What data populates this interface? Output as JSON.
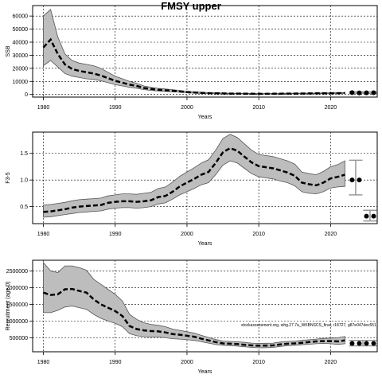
{
  "title": "FMSY upper",
  "footnote": "stockassessment.org, whg.27.7a_WKBNSCS_final, r18727, g87e047dec551",
  "chart_data": [
    {
      "type": "line",
      "ylabel": "SSB",
      "xlabel": "Years",
      "xlim": [
        1978.5,
        2026.5
      ],
      "ylim": [
        -2000,
        68000
      ],
      "xticks": [
        1980,
        1990,
        2000,
        2010,
        2020
      ],
      "yticks": [
        0,
        10000,
        20000,
        30000,
        40000,
        50000,
        60000
      ],
      "ytick_labels": [
        "0",
        "10000",
        "20000",
        "30000",
        "40000",
        "50000",
        "60000"
      ],
      "grid": true,
      "x": [
        1980,
        1981,
        1982,
        1983,
        1984,
        1985,
        1986,
        1987,
        1988,
        1989,
        1990,
        1991,
        1992,
        1993,
        1994,
        1995,
        1996,
        1997,
        1998,
        1999,
        2000,
        2001,
        2002,
        2003,
        2004,
        2005,
        2006,
        2007,
        2008,
        2009,
        2010,
        2011,
        2012,
        2013,
        2014,
        2015,
        2016,
        2017,
        2018,
        2019,
        2020,
        2021,
        2022
      ],
      "series": [
        {
          "role": "estimate",
          "values": [
            36000,
            42000,
            31000,
            23000,
            19500,
            18000,
            17000,
            16000,
            14500,
            12500,
            10500,
            9000,
            7500,
            6500,
            5000,
            4200,
            3600,
            3200,
            2800,
            2300,
            1800,
            1500,
            1200,
            1000,
            900,
            800,
            700,
            650,
            600,
            550,
            500,
            500,
            550,
            600,
            650,
            700,
            750,
            800,
            850,
            900,
            950,
            1000,
            1100
          ]
        },
        {
          "role": "upper",
          "values": [
            60000,
            65000,
            44000,
            31000,
            26000,
            24000,
            23000,
            22000,
            20000,
            17000,
            14000,
            12000,
            10000,
            8500,
            6500,
            5500,
            4700,
            4200,
            3700,
            3100,
            2500,
            2100,
            1700,
            1400,
            1250,
            1100,
            1000,
            900,
            850,
            800,
            750,
            750,
            800,
            850,
            900,
            950,
            1000,
            1050,
            1100,
            1150,
            1250,
            1350,
            1500
          ]
        },
        {
          "role": "lower",
          "values": [
            22000,
            26000,
            21000,
            16000,
            14000,
            13000,
            12000,
            11500,
            10500,
            9000,
            7500,
            6500,
            5500,
            4700,
            3700,
            3100,
            2700,
            2400,
            2100,
            1700,
            1300,
            1050,
            850,
            700,
            620,
            560,
            500,
            450,
            420,
            390,
            360,
            360,
            390,
            420,
            450,
            480,
            520,
            560,
            590,
            620,
            660,
            700,
            760
          ]
        }
      ],
      "forecast": {
        "x": [
          2023,
          2024,
          2025,
          2026
        ],
        "values": [
          1400,
          1200,
          1250,
          1350
        ],
        "upper": [
          2000,
          1800,
          1900,
          2000
        ],
        "lower": [
          900,
          750,
          800,
          850
        ]
      }
    },
    {
      "type": "line",
      "ylabel": "F3-5",
      "xlabel": "Years",
      "xlim": [
        1978.5,
        2026.5
      ],
      "ylim": [
        0.18,
        1.9
      ],
      "xticks": [
        1980,
        1990,
        2000,
        2010,
        2020
      ],
      "yticks": [
        0.5,
        1.0,
        1.5
      ],
      "ytick_labels": [
        "0.5",
        "1.0",
        "1.5"
      ],
      "grid": true,
      "x": [
        1980,
        1981,
        1982,
        1983,
        1984,
        1985,
        1986,
        1987,
        1988,
        1989,
        1990,
        1991,
        1992,
        1993,
        1994,
        1995,
        1996,
        1997,
        1998,
        1999,
        2000,
        2001,
        2002,
        2003,
        2004,
        2005,
        2006,
        2007,
        2008,
        2009,
        2010,
        2011,
        2012,
        2013,
        2014,
        2015,
        2016,
        2017,
        2018,
        2019,
        2020,
        2021,
        2022
      ],
      "series": [
        {
          "role": "estimate",
          "values": [
            0.4,
            0.41,
            0.43,
            0.45,
            0.48,
            0.5,
            0.51,
            0.52,
            0.53,
            0.57,
            0.59,
            0.6,
            0.6,
            0.59,
            0.6,
            0.62,
            0.68,
            0.7,
            0.78,
            0.88,
            0.95,
            1.02,
            1.1,
            1.15,
            1.32,
            1.52,
            1.6,
            1.55,
            1.44,
            1.33,
            1.26,
            1.24,
            1.22,
            1.18,
            1.14,
            1.08,
            0.95,
            0.92,
            0.9,
            0.95,
            1.03,
            1.06,
            1.1
          ]
        },
        {
          "role": "upper",
          "values": [
            0.53,
            0.54,
            0.56,
            0.58,
            0.61,
            0.63,
            0.64,
            0.65,
            0.66,
            0.7,
            0.72,
            0.74,
            0.74,
            0.73,
            0.75,
            0.77,
            0.84,
            0.87,
            0.96,
            1.07,
            1.15,
            1.23,
            1.32,
            1.38,
            1.56,
            1.78,
            1.86,
            1.8,
            1.68,
            1.56,
            1.48,
            1.46,
            1.44,
            1.4,
            1.36,
            1.3,
            1.15,
            1.12,
            1.1,
            1.16,
            1.25,
            1.29,
            1.36
          ]
        },
        {
          "role": "lower",
          "values": [
            0.3,
            0.31,
            0.33,
            0.35,
            0.37,
            0.39,
            0.4,
            0.41,
            0.42,
            0.45,
            0.47,
            0.48,
            0.48,
            0.47,
            0.48,
            0.5,
            0.55,
            0.57,
            0.64,
            0.72,
            0.78,
            0.84,
            0.91,
            0.95,
            1.1,
            1.28,
            1.36,
            1.32,
            1.22,
            1.12,
            1.06,
            1.04,
            1.02,
            0.98,
            0.95,
            0.89,
            0.78,
            0.75,
            0.74,
            0.78,
            0.85,
            0.87,
            0.88
          ]
        }
      ],
      "forecast": {
        "x": [
          2023,
          2024
        ],
        "values": [
          1.0,
          1.0
        ],
        "upper": [
          1.37,
          1.37
        ],
        "lower": [
          0.72,
          0.72
        ]
      },
      "forecast_low": {
        "x": [
          2025,
          2026
        ],
        "values": [
          0.32,
          0.32
        ],
        "upper": [
          0.43,
          0.43
        ],
        "lower": [
          0.23,
          0.23
        ]
      }
    },
    {
      "type": "line",
      "ylabel": "Recruitment (age 0)",
      "xlabel": "Years",
      "xlim": [
        1978.5,
        2026.5
      ],
      "ylim": [
        80000,
        2820000
      ],
      "xticks": [
        1980,
        1990,
        2000,
        2010,
        2020
      ],
      "yticks": [
        500000,
        1000000,
        1500000,
        2000000,
        2500000
      ],
      "ytick_labels": [
        "500000",
        "1000000",
        "1500000",
        "2000000",
        "2500000"
      ],
      "grid": true,
      "x": [
        1980,
        1981,
        1982,
        1983,
        1984,
        1985,
        1986,
        1987,
        1988,
        1989,
        1990,
        1991,
        1992,
        1993,
        1994,
        1995,
        1996,
        1997,
        1998,
        1999,
        2000,
        2001,
        2002,
        2003,
        2004,
        2005,
        2006,
        2007,
        2008,
        2009,
        2010,
        2011,
        2012,
        2013,
        2014,
        2015,
        2016,
        2017,
        2018,
        2019,
        2020,
        2021,
        2022
      ],
      "series": [
        {
          "role": "estimate",
          "values": [
            1850000,
            1780000,
            1800000,
            1950000,
            1960000,
            1900000,
            1850000,
            1650000,
            1500000,
            1400000,
            1300000,
            1150000,
            850000,
            760000,
            720000,
            700000,
            690000,
            660000,
            610000,
            590000,
            560000,
            530000,
            470000,
            420000,
            370000,
            330000,
            320000,
            310000,
            290000,
            270000,
            260000,
            265000,
            270000,
            300000,
            320000,
            330000,
            350000,
            370000,
            390000,
            400000,
            400000,
            390000,
            420000
          ]
        },
        {
          "role": "upper",
          "values": [
            2750000,
            2500000,
            2450000,
            2650000,
            2650000,
            2600000,
            2520000,
            2250000,
            2100000,
            1950000,
            1800000,
            1600000,
            1200000,
            1050000,
            950000,
            900000,
            870000,
            830000,
            760000,
            720000,
            680000,
            640000,
            570000,
            510000,
            450000,
            400000,
            390000,
            380000,
            360000,
            340000,
            330000,
            335000,
            340000,
            370000,
            390000,
            400000,
            420000,
            440000,
            460000,
            480000,
            490000,
            500000,
            540000
          ]
        },
        {
          "role": "lower",
          "values": [
            1250000,
            1250000,
            1320000,
            1420000,
            1450000,
            1400000,
            1350000,
            1200000,
            1080000,
            1000000,
            930000,
            830000,
            620000,
            560000,
            530000,
            520000,
            520000,
            500000,
            470000,
            460000,
            440000,
            420000,
            380000,
            340000,
            300000,
            270000,
            260000,
            250000,
            230000,
            210000,
            200000,
            205000,
            210000,
            240000,
            260000,
            270000,
            290000,
            305000,
            320000,
            330000,
            320000,
            300000,
            320000
          ]
        }
      ],
      "forecast": {
        "x": [
          2023,
          2024,
          2025,
          2026
        ],
        "values": [
          330000,
          330000,
          330000,
          330000
        ],
        "upper": [
          420000,
          420000,
          420000,
          420000
        ],
        "lower": [
          260000,
          260000,
          260000,
          260000
        ]
      }
    }
  ]
}
